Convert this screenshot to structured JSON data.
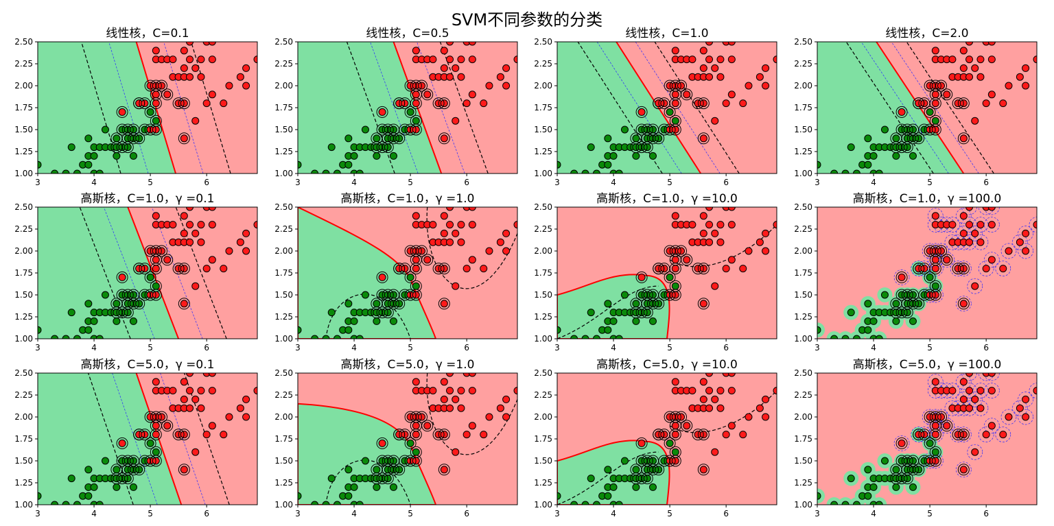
{
  "figure": {
    "title": "SVM不同参数的分类",
    "colors": {
      "class_green_region": "#7fe0a2",
      "class_red_region": "#ffa0a0",
      "point_green": "#0a8a0a",
      "point_red": "#ff1a1a",
      "decision_boundary": "#ff0000",
      "margin_dashed": "#000000",
      "inner_dashed": "#2a2aff"
    }
  },
  "chart_data": [
    {
      "type": "scatter",
      "title": "线性核，C=0.1",
      "kernel": "linear",
      "C": 0.1,
      "xlim": [
        3,
        6.9
      ],
      "ylim": [
        1.0,
        2.5
      ],
      "xticks": [
        "3",
        "4",
        "5",
        "6"
      ],
      "yticks": [
        "1.00",
        "1.25",
        "1.50",
        "1.75",
        "2.00",
        "2.25",
        "2.50"
      ],
      "boundary_x_at_ylim": [
        5.45,
        4.75
      ]
    },
    {
      "type": "scatter",
      "title": "线性核，C=0.5",
      "kernel": "linear",
      "C": 0.5,
      "xlim": [
        3,
        6.9
      ],
      "ylim": [
        1.0,
        2.5
      ],
      "xticks": [
        "3",
        "4",
        "5",
        "6"
      ],
      "yticks": [
        "1.00",
        "1.25",
        "1.50",
        "1.75",
        "2.00",
        "2.25",
        "2.50"
      ],
      "boundary_x_at_ylim": [
        5.55,
        4.7
      ]
    },
    {
      "type": "scatter",
      "title": "线性核，C=1.0",
      "kernel": "linear",
      "C": 1.0,
      "xlim": [
        3,
        6.9
      ],
      "ylim": [
        1.0,
        2.5
      ],
      "xticks": [
        "3",
        "4",
        "5",
        "6"
      ],
      "yticks": [
        "1.00",
        "1.25",
        "1.50",
        "1.75",
        "2.00",
        "2.25",
        "2.50"
      ],
      "boundary_x_at_ylim": [
        5.55,
        4.05
      ]
    },
    {
      "type": "scatter",
      "title": "线性核，C=2.0",
      "kernel": "linear",
      "C": 2.0,
      "xlim": [
        3,
        6.9
      ],
      "ylim": [
        1.0,
        2.5
      ],
      "xticks": [
        "3",
        "4",
        "5",
        "6"
      ],
      "yticks": [
        "1.00",
        "1.25",
        "1.50",
        "1.75",
        "2.00",
        "2.25",
        "2.50"
      ],
      "boundary_x_at_ylim": [
        5.6,
        4.05
      ]
    },
    {
      "type": "scatter",
      "title": "高斯核，C=1.0，γ =0.1",
      "kernel": "rbf",
      "C": 1.0,
      "gamma": 0.1,
      "xlim": [
        3,
        6.9
      ],
      "ylim": [
        1.0,
        2.5
      ],
      "xticks": [
        "3",
        "4",
        "5",
        "6"
      ],
      "yticks": [
        "1.00",
        "1.25",
        "1.50",
        "1.75",
        "2.00",
        "2.25",
        "2.50"
      ],
      "boundary_x_at_ylim": [
        5.5,
        4.6
      ]
    },
    {
      "type": "scatter",
      "title": "高斯核，C=1.0，γ =1.0",
      "kernel": "rbf",
      "C": 1.0,
      "gamma": 1.0,
      "xlim": [
        3,
        6.9
      ],
      "ylim": [
        1.0,
        2.5
      ],
      "xticks": [
        "3",
        "4",
        "5",
        "6"
      ],
      "yticks": [
        "1.00",
        "1.25",
        "1.50",
        "1.75",
        "2.00",
        "2.25",
        "2.50"
      ]
    },
    {
      "type": "scatter",
      "title": "高斯核，C=1.0，γ =10.0",
      "kernel": "rbf",
      "C": 1.0,
      "gamma": 10.0,
      "xlim": [
        3,
        6.9
      ],
      "ylim": [
        1.0,
        2.5
      ],
      "xticks": [
        "3",
        "4",
        "5",
        "6"
      ],
      "yticks": [
        "1.00",
        "1.25",
        "1.50",
        "1.75",
        "2.00",
        "2.25",
        "2.50"
      ]
    },
    {
      "type": "scatter",
      "title": "高斯核，C=1.0，γ =100.0",
      "kernel": "rbf",
      "C": 1.0,
      "gamma": 100.0,
      "xlim": [
        3,
        6.9
      ],
      "ylim": [
        1.0,
        2.5
      ],
      "xticks": [
        "3",
        "4",
        "5",
        "6"
      ],
      "yticks": [
        "1.00",
        "1.25",
        "1.50",
        "1.75",
        "2.00",
        "2.25",
        "2.50"
      ]
    },
    {
      "type": "scatter",
      "title": "高斯核，C=5.0，γ =0.1",
      "kernel": "rbf",
      "C": 5.0,
      "gamma": 0.1,
      "xlim": [
        3,
        6.9
      ],
      "ylim": [
        1.0,
        2.5
      ],
      "xticks": [
        "3",
        "4",
        "5",
        "6"
      ],
      "yticks": [
        "1.00",
        "1.25",
        "1.50",
        "1.75",
        "2.00",
        "2.25",
        "2.50"
      ],
      "boundary_x_at_ylim": [
        5.55,
        4.75
      ]
    },
    {
      "type": "scatter",
      "title": "高斯核，C=5.0，γ =1.0",
      "kernel": "rbf",
      "C": 5.0,
      "gamma": 1.0,
      "xlim": [
        3,
        6.9
      ],
      "ylim": [
        1.0,
        2.5
      ],
      "xticks": [
        "3",
        "4",
        "5",
        "6"
      ],
      "yticks": [
        "1.00",
        "1.25",
        "1.50",
        "1.75",
        "2.00",
        "2.25",
        "2.50"
      ]
    },
    {
      "type": "scatter",
      "title": "高斯核，C=5.0，γ =10.0",
      "kernel": "rbf",
      "C": 5.0,
      "gamma": 10.0,
      "xlim": [
        3,
        6.9
      ],
      "ylim": [
        1.0,
        2.5
      ],
      "xticks": [
        "3",
        "4",
        "5",
        "6"
      ],
      "yticks": [
        "1.00",
        "1.25",
        "1.50",
        "1.75",
        "2.00",
        "2.25",
        "2.50"
      ]
    },
    {
      "type": "scatter",
      "title": "高斯核，C=5.0，γ =100.0",
      "kernel": "rbf",
      "C": 5.0,
      "gamma": 100.0,
      "xlim": [
        3,
        6.9
      ],
      "ylim": [
        1.0,
        2.5
      ],
      "xticks": [
        "3",
        "4",
        "5",
        "6"
      ],
      "yticks": [
        "1.00",
        "1.25",
        "1.50",
        "1.75",
        "2.00",
        "2.25",
        "2.50"
      ]
    }
  ],
  "points": {
    "green": [
      [
        3.0,
        1.1
      ],
      [
        3.3,
        1.0
      ],
      [
        3.5,
        1.0
      ],
      [
        3.6,
        1.3
      ],
      [
        3.7,
        1.0
      ],
      [
        3.8,
        1.1
      ],
      [
        3.9,
        1.1
      ],
      [
        3.9,
        1.2
      ],
      [
        3.9,
        1.4
      ],
      [
        4.0,
        1.0
      ],
      [
        4.0,
        1.2
      ],
      [
        4.0,
        1.3
      ],
      [
        4.1,
        1.0
      ],
      [
        4.1,
        1.3
      ],
      [
        4.2,
        1.3
      ],
      [
        4.2,
        1.5
      ],
      [
        4.3,
        1.3
      ],
      [
        4.4,
        1.2
      ],
      [
        4.4,
        1.3
      ],
      [
        4.4,
        1.4
      ],
      [
        4.5,
        1.3
      ],
      [
        4.5,
        1.5
      ],
      [
        4.6,
        1.3
      ],
      [
        4.6,
        1.4
      ],
      [
        4.6,
        1.5
      ],
      [
        4.7,
        1.2
      ],
      [
        4.7,
        1.4
      ],
      [
        4.7,
        1.5
      ],
      [
        4.8,
        1.4
      ],
      [
        4.8,
        1.8
      ],
      [
        4.9,
        1.5
      ],
      [
        5.0,
        1.7
      ],
      [
        5.1,
        1.6
      ]
    ],
    "red": [
      [
        4.5,
        1.7
      ],
      [
        4.8,
        1.8
      ],
      [
        4.9,
        1.8
      ],
      [
        5.0,
        1.5
      ],
      [
        5.0,
        2.0
      ],
      [
        5.1,
        1.5
      ],
      [
        5.1,
        1.8
      ],
      [
        5.1,
        1.9
      ],
      [
        5.1,
        2.0
      ],
      [
        5.1,
        2.3
      ],
      [
        5.1,
        2.4
      ],
      [
        5.2,
        2.0
      ],
      [
        5.2,
        2.3
      ],
      [
        5.3,
        1.9
      ],
      [
        5.3,
        2.3
      ],
      [
        5.4,
        2.1
      ],
      [
        5.4,
        2.3
      ],
      [
        5.5,
        1.8
      ],
      [
        5.5,
        2.1
      ],
      [
        5.6,
        1.4
      ],
      [
        5.6,
        1.8
      ],
      [
        5.6,
        2.1
      ],
      [
        5.6,
        2.2
      ],
      [
        5.6,
        2.4
      ],
      [
        5.7,
        2.1
      ],
      [
        5.7,
        2.3
      ],
      [
        5.7,
        2.5
      ],
      [
        5.8,
        1.6
      ],
      [
        5.8,
        2.2
      ],
      [
        5.9,
        2.1
      ],
      [
        5.9,
        2.3
      ],
      [
        6.0,
        1.8
      ],
      [
        6.0,
        2.5
      ],
      [
        6.1,
        1.9
      ],
      [
        6.1,
        2.3
      ],
      [
        6.1,
        2.5
      ],
      [
        6.3,
        1.8
      ],
      [
        6.4,
        2.0
      ],
      [
        6.6,
        2.1
      ],
      [
        6.7,
        2.0
      ],
      [
        6.7,
        2.2
      ],
      [
        6.9,
        2.3
      ]
    ]
  }
}
